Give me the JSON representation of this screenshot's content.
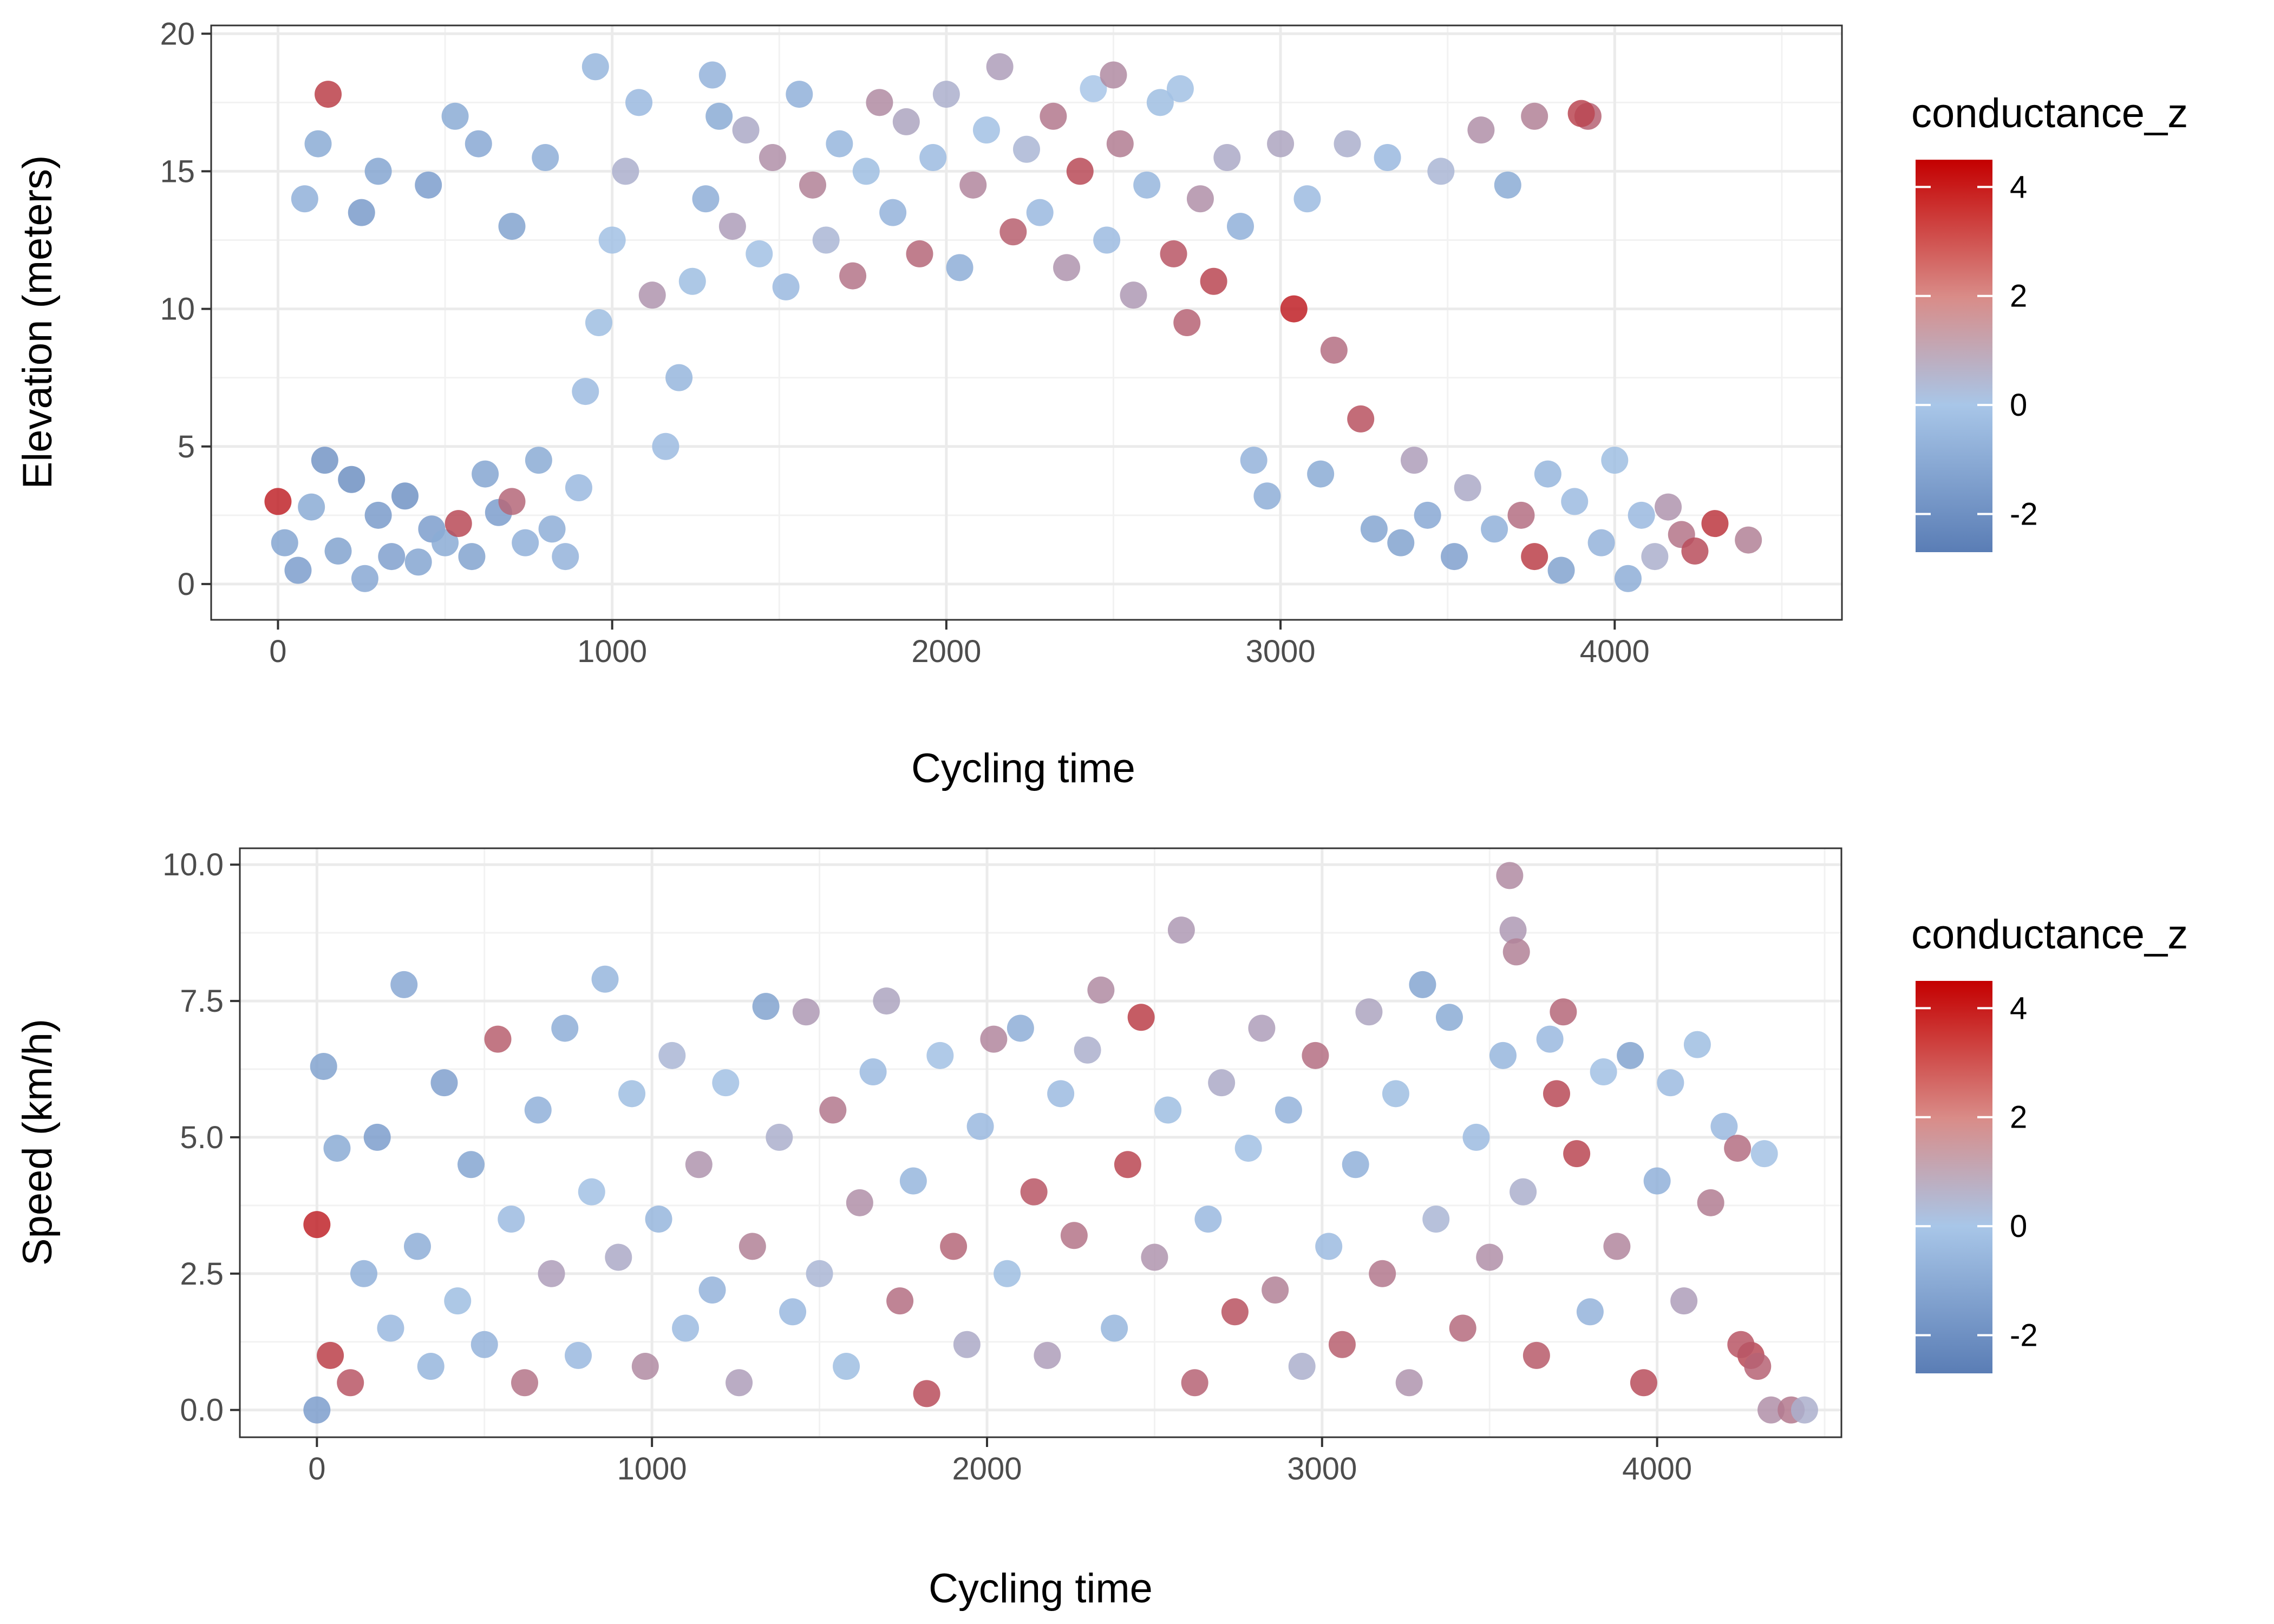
{
  "chart_data": [
    {
      "type": "scatter",
      "title": "",
      "xlabel": "Cycling time",
      "ylabel": "Elevation (meters)",
      "xlim": [
        -200,
        4680
      ],
      "ylim": [
        -1.3,
        20.3
      ],
      "x_ticks": [
        0,
        1000,
        2000,
        3000,
        4000
      ],
      "y_ticks": [
        0,
        5,
        10,
        15,
        20
      ],
      "grid": true,
      "legend": {
        "title": "conductance_z",
        "placement": "right",
        "breaks": [
          4,
          2,
          0,
          -2
        ],
        "range": [
          -2.7,
          4.5
        ]
      },
      "colors": {
        "low": "#5A7DB5",
        "mid": "#A8C6E8",
        "high": "#C40000"
      },
      "note": "",
      "points": [
        [
          0,
          3,
          3.5
        ],
        [
          20,
          1.5,
          -1.2
        ],
        [
          60,
          0.5,
          -1.5
        ],
        [
          100,
          2.8,
          -1.0
        ],
        [
          140,
          4.5,
          -1.8
        ],
        [
          180,
          1.2,
          -1.3
        ],
        [
          220,
          3.8,
          -2.0
        ],
        [
          260,
          0.2,
          -1.1
        ],
        [
          300,
          2.5,
          -1.6
        ],
        [
          340,
          1.0,
          -1.4
        ],
        [
          380,
          3.2,
          -1.9
        ],
        [
          420,
          0.8,
          -1.2
        ],
        [
          460,
          2.0,
          -1.5
        ],
        [
          500,
          1.5,
          -1.0
        ],
        [
          540,
          2.2,
          2.5
        ],
        [
          580,
          1.0,
          -1.3
        ],
        [
          620,
          4.0,
          -1.2
        ],
        [
          660,
          2.6,
          -1.5
        ],
        [
          700,
          3.0,
          1.8
        ],
        [
          740,
          1.5,
          -0.8
        ],
        [
          780,
          4.5,
          -1.0
        ],
        [
          820,
          2.0,
          -0.9
        ],
        [
          860,
          1.0,
          -0.7
        ],
        [
          900,
          3.5,
          -0.5
        ],
        [
          920,
          7.0,
          -0.4
        ],
        [
          960,
          9.5,
          -0.3
        ],
        [
          1000,
          12.5,
          -0.2
        ],
        [
          1040,
          15.0,
          0.3
        ],
        [
          1080,
          17.5,
          -0.5
        ],
        [
          1120,
          10.5,
          0.8
        ],
        [
          1160,
          5.0,
          -0.4
        ],
        [
          1200,
          7.5,
          -0.6
        ],
        [
          1240,
          11.0,
          -0.3
        ],
        [
          1280,
          14.0,
          -0.9
        ],
        [
          1320,
          17.0,
          -1.0
        ],
        [
          1360,
          13.0,
          0.6
        ],
        [
          1400,
          16.5,
          0.4
        ],
        [
          1440,
          12.0,
          -0.2
        ],
        [
          1480,
          15.5,
          0.9
        ],
        [
          1520,
          10.8,
          -0.5
        ],
        [
          1560,
          17.8,
          -0.8
        ],
        [
          1600,
          14.5,
          1.2
        ],
        [
          1640,
          12.5,
          0.2
        ],
        [
          1680,
          16.0,
          -0.6
        ],
        [
          1720,
          11.2,
          1.5
        ],
        [
          1760,
          15.0,
          -0.3
        ],
        [
          1800,
          17.5,
          1.0
        ],
        [
          1840,
          13.5,
          -0.7
        ],
        [
          1880,
          16.8,
          0.5
        ],
        [
          1920,
          12.0,
          1.8
        ],
        [
          1960,
          15.5,
          -0.4
        ],
        [
          2000,
          17.8,
          0.3
        ],
        [
          2040,
          11.5,
          -0.9
        ],
        [
          2080,
          14.5,
          1.1
        ],
        [
          2120,
          16.5,
          -0.2
        ],
        [
          2160,
          18.8,
          0.6
        ],
        [
          2200,
          12.8,
          2.0
        ],
        [
          2240,
          15.8,
          0.2
        ],
        [
          2280,
          13.5,
          -0.5
        ],
        [
          2320,
          17.0,
          1.4
        ],
        [
          2360,
          11.5,
          0.8
        ],
        [
          2400,
          15.0,
          2.5
        ],
        [
          2440,
          18.0,
          0.0
        ],
        [
          2480,
          12.5,
          -0.4
        ],
        [
          2520,
          16.0,
          1.3
        ],
        [
          2560,
          10.5,
          0.7
        ],
        [
          2600,
          14.5,
          -0.6
        ],
        [
          2640,
          17.5,
          -0.3
        ],
        [
          2680,
          12.0,
          2.2
        ],
        [
          2720,
          9.5,
          1.9
        ],
        [
          2760,
          14.0,
          0.9
        ],
        [
          2800,
          11.0,
          2.6
        ],
        [
          2840,
          15.5,
          0.4
        ],
        [
          2880,
          13.0,
          -0.8
        ],
        [
          2920,
          4.5,
          -0.7
        ],
        [
          2960,
          3.2,
          -0.9
        ],
        [
          3000,
          16.0,
          0.5
        ],
        [
          3040,
          10.0,
          3.6
        ],
        [
          3080,
          14.0,
          -0.4
        ],
        [
          3120,
          4.0,
          -1.0
        ],
        [
          3160,
          8.5,
          1.6
        ],
        [
          3200,
          16.0,
          0.3
        ],
        [
          3240,
          6.0,
          2.3
        ],
        [
          3280,
          2.0,
          -1.2
        ],
        [
          3320,
          15.5,
          -0.5
        ],
        [
          3360,
          1.5,
          -1.3
        ],
        [
          3400,
          4.5,
          0.6
        ],
        [
          3440,
          2.5,
          -1.1
        ],
        [
          3480,
          15.0,
          0.2
        ],
        [
          3520,
          1.0,
          -1.4
        ],
        [
          3560,
          3.5,
          0.4
        ],
        [
          3600,
          16.5,
          0.9
        ],
        [
          3640,
          2.0,
          -0.8
        ],
        [
          3680,
          14.5,
          -1.0
        ],
        [
          3720,
          2.5,
          1.6
        ],
        [
          3760,
          1.0,
          2.8
        ],
        [
          3800,
          4.0,
          -0.6
        ],
        [
          3840,
          0.5,
          -1.3
        ],
        [
          3880,
          3.0,
          -0.4
        ],
        [
          3920,
          17.0,
          1.9
        ],
        [
          3960,
          1.5,
          -0.7
        ],
        [
          4000,
          4.5,
          -0.3
        ],
        [
          4040,
          0.2,
          -0.9
        ],
        [
          4080,
          2.5,
          -0.5
        ],
        [
          4120,
          1.0,
          0.3
        ],
        [
          4160,
          2.8,
          0.8
        ],
        [
          4200,
          1.8,
          1.5
        ],
        [
          4240,
          1.2,
          2.4
        ],
        [
          4300,
          2.2,
          3.0
        ],
        [
          4400,
          1.6,
          1.2
        ],
        [
          3900,
          17.1,
          2.6
        ],
        [
          3760,
          17.0,
          1.2
        ],
        [
          2500,
          18.5,
          1.0
        ],
        [
          2700,
          18.0,
          -0.2
        ],
        [
          1300,
          18.5,
          -0.7
        ],
        [
          950,
          18.8,
          -0.6
        ],
        [
          150,
          17.8,
          2.8
        ],
        [
          120,
          16.0,
          -1.0
        ],
        [
          300,
          15.0,
          -1.2
        ],
        [
          450,
          14.5,
          -1.5
        ],
        [
          600,
          16.0,
          -1.1
        ],
        [
          800,
          15.5,
          -0.9
        ],
        [
          700,
          13.0,
          -1.3
        ],
        [
          250,
          13.5,
          -1.6
        ],
        [
          530,
          17.0,
          -1.0
        ],
        [
          80,
          14.0,
          -0.8
        ]
      ]
    },
    {
      "type": "scatter",
      "title": "",
      "xlabel": "Cycling time",
      "ylabel": "Speed (km/h)",
      "xlim": [
        -230,
        4550
      ],
      "ylim": [
        -0.5,
        10.3
      ],
      "x_ticks": [
        0,
        1000,
        2000,
        3000,
        4000
      ],
      "y_ticks": [
        0.0,
        2.5,
        5.0,
        7.5,
        10.0
      ],
      "y_tick_labels": [
        "0.0",
        "2.5",
        "5.0",
        "7.5",
        "10.0"
      ],
      "grid": true,
      "legend": {
        "title": "conductance_z",
        "placement": "right",
        "breaks": [
          4,
          2,
          0,
          -2
        ],
        "range": [
          -2.7,
          4.5
        ]
      },
      "colors": {
        "low": "#5A7DB5",
        "mid": "#A8C6E8",
        "high": "#C40000"
      },
      "note": "",
      "points": [
        [
          0,
          3.4,
          3.5
        ],
        [
          0,
          0.0,
          -1.5
        ],
        [
          20,
          6.3,
          -1.3
        ],
        [
          40,
          1.0,
          2.8
        ],
        [
          60,
          4.8,
          -1.0
        ],
        [
          100,
          0.5,
          2.2
        ],
        [
          140,
          2.5,
          -0.8
        ],
        [
          180,
          5.0,
          -1.5
        ],
        [
          220,
          1.5,
          -0.5
        ],
        [
          260,
          7.8,
          -1.1
        ],
        [
          300,
          3.0,
          -0.9
        ],
        [
          340,
          0.8,
          -0.6
        ],
        [
          380,
          6.0,
          -1.4
        ],
        [
          420,
          2.0,
          -0.3
        ],
        [
          460,
          4.5,
          -1.2
        ],
        [
          500,
          1.2,
          -0.7
        ],
        [
          540,
          6.8,
          2.0
        ],
        [
          580,
          3.5,
          -0.4
        ],
        [
          620,
          0.5,
          1.5
        ],
        [
          660,
          5.5,
          -0.8
        ],
        [
          700,
          2.5,
          0.6
        ],
        [
          740,
          7.0,
          -0.9
        ],
        [
          780,
          1.0,
          -0.5
        ],
        [
          820,
          4.0,
          -0.2
        ],
        [
          860,
          7.9,
          -0.6
        ],
        [
          900,
          2.8,
          0.4
        ],
        [
          940,
          5.8,
          -0.3
        ],
        [
          980,
          0.8,
          1.0
        ],
        [
          1020,
          3.5,
          -0.6
        ],
        [
          1060,
          6.5,
          0.2
        ],
        [
          1100,
          1.5,
          -0.4
        ],
        [
          1140,
          4.5,
          0.8
        ],
        [
          1180,
          2.2,
          -0.7
        ],
        [
          1220,
          6.0,
          -0.2
        ],
        [
          1260,
          0.5,
          0.6
        ],
        [
          1300,
          3.0,
          1.2
        ],
        [
          1340,
          7.4,
          -1.3
        ],
        [
          1380,
          5.0,
          0.3
        ],
        [
          1420,
          1.8,
          -0.5
        ],
        [
          1460,
          7.3,
          0.7
        ],
        [
          1500,
          2.5,
          0.2
        ],
        [
          1540,
          5.5,
          1.4
        ],
        [
          1580,
          0.8,
          -0.3
        ],
        [
          1620,
          3.8,
          0.9
        ],
        [
          1660,
          6.2,
          -0.4
        ],
        [
          1700,
          7.5,
          0.5
        ],
        [
          1740,
          2.0,
          1.6
        ],
        [
          1780,
          4.2,
          -0.6
        ],
        [
          1820,
          0.3,
          2.4
        ],
        [
          1860,
          6.5,
          -0.2
        ],
        [
          1900,
          3.0,
          1.8
        ],
        [
          1940,
          1.2,
          0.4
        ],
        [
          1980,
          5.2,
          -0.5
        ],
        [
          2020,
          6.8,
          1.1
        ],
        [
          2060,
          2.5,
          -0.3
        ],
        [
          2100,
          7.0,
          -0.9
        ],
        [
          2140,
          4.0,
          2.2
        ],
        [
          2180,
          1.0,
          0.6
        ],
        [
          2220,
          5.8,
          -0.4
        ],
        [
          2260,
          3.2,
          1.5
        ],
        [
          2300,
          6.6,
          0.3
        ],
        [
          2340,
          7.7,
          1.0
        ],
        [
          2380,
          1.5,
          -0.6
        ],
        [
          2420,
          4.5,
          2.6
        ],
        [
          2460,
          7.2,
          2.8
        ],
        [
          2500,
          2.8,
          0.8
        ],
        [
          2540,
          5.5,
          -0.3
        ],
        [
          2580,
          8.8,
          0.7
        ],
        [
          2620,
          0.5,
          1.9
        ],
        [
          2660,
          3.5,
          -0.5
        ],
        [
          2700,
          6.0,
          0.4
        ],
        [
          2740,
          1.8,
          2.3
        ],
        [
          2780,
          4.8,
          -0.2
        ],
        [
          2820,
          7.0,
          0.6
        ],
        [
          2860,
          2.2,
          1.2
        ],
        [
          2900,
          5.5,
          -0.7
        ],
        [
          2940,
          0.8,
          0.3
        ],
        [
          2980,
          6.5,
          1.6
        ],
        [
          3020,
          3.0,
          -0.4
        ],
        [
          3060,
          1.2,
          2.0
        ],
        [
          3100,
          4.5,
          -0.8
        ],
        [
          3140,
          7.3,
          0.5
        ],
        [
          3180,
          2.5,
          1.4
        ],
        [
          3220,
          5.8,
          -0.3
        ],
        [
          3260,
          0.5,
          0.8
        ],
        [
          3300,
          7.8,
          -1.2
        ],
        [
          3340,
          3.5,
          0.2
        ],
        [
          3380,
          7.2,
          -1.0
        ],
        [
          3420,
          1.5,
          1.7
        ],
        [
          3460,
          5.0,
          -0.4
        ],
        [
          3500,
          2.8,
          0.9
        ],
        [
          3540,
          6.5,
          -0.6
        ],
        [
          3560,
          9.8,
          1.0
        ],
        [
          3570,
          8.8,
          0.7
        ],
        [
          3580,
          8.4,
          1.2
        ],
        [
          3600,
          4.0,
          0.3
        ],
        [
          3640,
          1.0,
          2.1
        ],
        [
          3680,
          6.8,
          -0.5
        ],
        [
          3720,
          7.3,
          1.8
        ],
        [
          3760,
          4.7,
          2.6
        ],
        [
          3800,
          1.8,
          -0.7
        ],
        [
          3840,
          6.2,
          -0.2
        ],
        [
          3880,
          3.0,
          1.1
        ],
        [
          3920,
          6.5,
          -1.3
        ],
        [
          3960,
          0.5,
          2.4
        ],
        [
          4000,
          4.2,
          -0.8
        ],
        [
          4040,
          6.0,
          -0.4
        ],
        [
          4080,
          2.0,
          0.6
        ],
        [
          4120,
          6.7,
          -0.3
        ],
        [
          4160,
          3.8,
          1.3
        ],
        [
          4200,
          5.2,
          -0.5
        ],
        [
          4240,
          4.8,
          1.6
        ],
        [
          4280,
          1.0,
          2.5
        ],
        [
          4320,
          4.7,
          -0.2
        ],
        [
          4340,
          0.0,
          0.9
        ],
        [
          4400,
          0.0,
          1.4
        ],
        [
          4440,
          0.0,
          0.3
        ],
        [
          4300,
          0.8,
          1.9
        ],
        [
          4250,
          1.2,
          2.2
        ],
        [
          3700,
          5.8,
          2.5
        ]
      ]
    }
  ]
}
